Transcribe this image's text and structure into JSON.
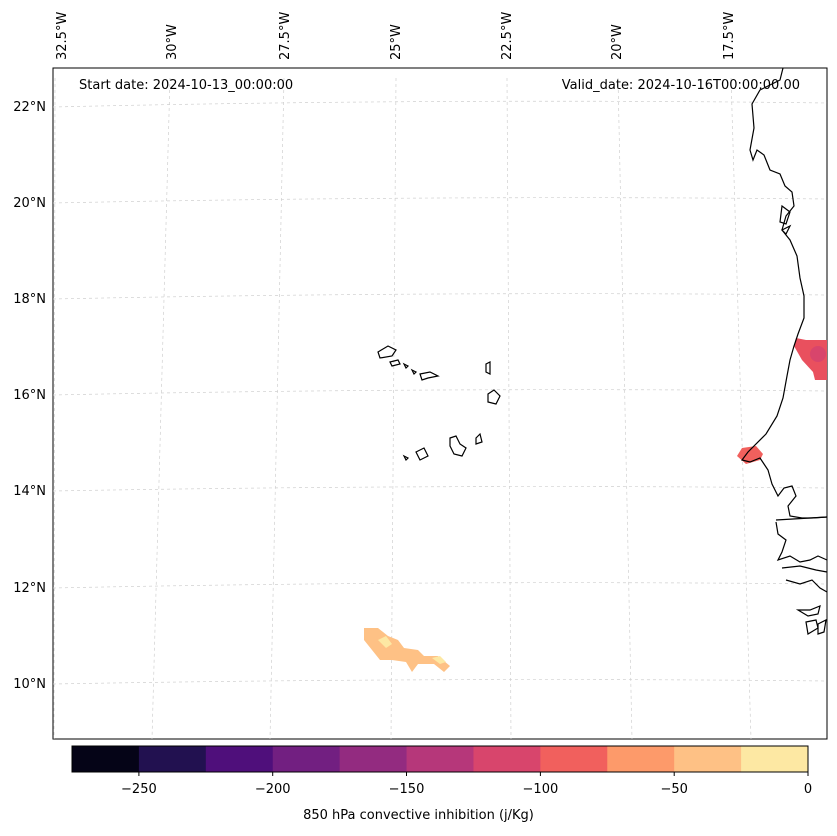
{
  "header": {
    "start_date": "Start date: 2024-10-13_00:00:00",
    "valid_date": "Valid_date: 2024-10-16T00:00:00.00"
  },
  "lon_ticks": [
    "32.5°W",
    "30°W",
    "27.5°W",
    "25°W",
    "22.5°W",
    "20°W",
    "17.5°W"
  ],
  "lat_ticks": [
    "22°N",
    "20°N",
    "18°N",
    "16°N",
    "14°N",
    "12°N",
    "10°N"
  ],
  "colorbar": {
    "label": "850 hPa convective inhibition (j/Kg)",
    "ticks": [
      "−250",
      "−200",
      "−150",
      "−100",
      "−50",
      "0"
    ],
    "colors": [
      "#050417",
      "#221150",
      "#4f0f7b",
      "#721f81",
      "#932b80",
      "#b6377a",
      "#d8456c",
      "#f1605d",
      "#fd9a6a",
      "#fec185",
      "#fde8a3"
    ]
  }
}
